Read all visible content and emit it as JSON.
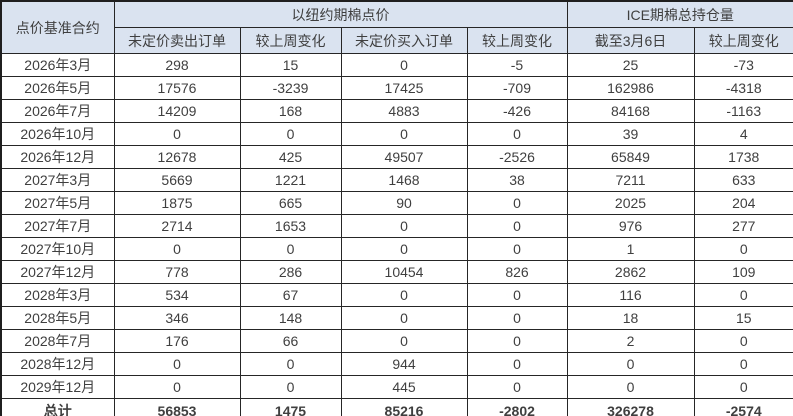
{
  "chart_data": {
    "type": "table",
    "title": "",
    "corner_header": "点价基准合约",
    "column_groups": [
      {
        "label": "以纽约期棉点价",
        "span": 4
      },
      {
        "label": "ICE期棉总持仓量",
        "span": 2
      }
    ],
    "sub_headers": [
      "未定价卖出订单",
      "较上周变化",
      "未定价买入订单",
      "较上周变化",
      "截至3月6日",
      "较上周变化"
    ],
    "rows": [
      {
        "contract": "2026年3月",
        "values": [
          298,
          15,
          0,
          -5,
          25,
          -73
        ]
      },
      {
        "contract": "2026年5月",
        "values": [
          17576,
          -3239,
          17425,
          -709,
          162986,
          -4318
        ]
      },
      {
        "contract": "2026年7月",
        "values": [
          14209,
          168,
          4883,
          -426,
          84168,
          -1163
        ]
      },
      {
        "contract": "2026年10月",
        "values": [
          0,
          0,
          0,
          0,
          39,
          4
        ]
      },
      {
        "contract": "2026年12月",
        "values": [
          12678,
          425,
          49507,
          -2526,
          65849,
          1738
        ]
      },
      {
        "contract": "2027年3月",
        "values": [
          5669,
          1221,
          1468,
          38,
          7211,
          633
        ]
      },
      {
        "contract": "2027年5月",
        "values": [
          1875,
          665,
          90,
          0,
          2025,
          204
        ]
      },
      {
        "contract": "2027年7月",
        "values": [
          2714,
          1653,
          0,
          0,
          976,
          277
        ]
      },
      {
        "contract": "2027年10月",
        "values": [
          0,
          0,
          0,
          0,
          1,
          0
        ]
      },
      {
        "contract": "2027年12月",
        "values": [
          778,
          286,
          10454,
          826,
          2862,
          109
        ]
      },
      {
        "contract": "2028年3月",
        "values": [
          534,
          67,
          0,
          0,
          116,
          0
        ]
      },
      {
        "contract": "2028年5月",
        "values": [
          346,
          148,
          0,
          0,
          18,
          15
        ]
      },
      {
        "contract": "2028年7月",
        "values": [
          176,
          66,
          0,
          0,
          2,
          0
        ]
      },
      {
        "contract": "2028年12月",
        "values": [
          0,
          0,
          944,
          0,
          0,
          0
        ]
      },
      {
        "contract": "2029年12月",
        "values": [
          0,
          0,
          445,
          0,
          0,
          0
        ]
      }
    ],
    "total": {
      "label": "总计",
      "values": [
        56853,
        1475,
        85216,
        -2802,
        326278,
        -2574
      ]
    }
  },
  "colors": {
    "header_bg": "#dae3f0",
    "border": "#262626",
    "outer_border": "#1f1f1f",
    "text": "#3f3f3f"
  }
}
